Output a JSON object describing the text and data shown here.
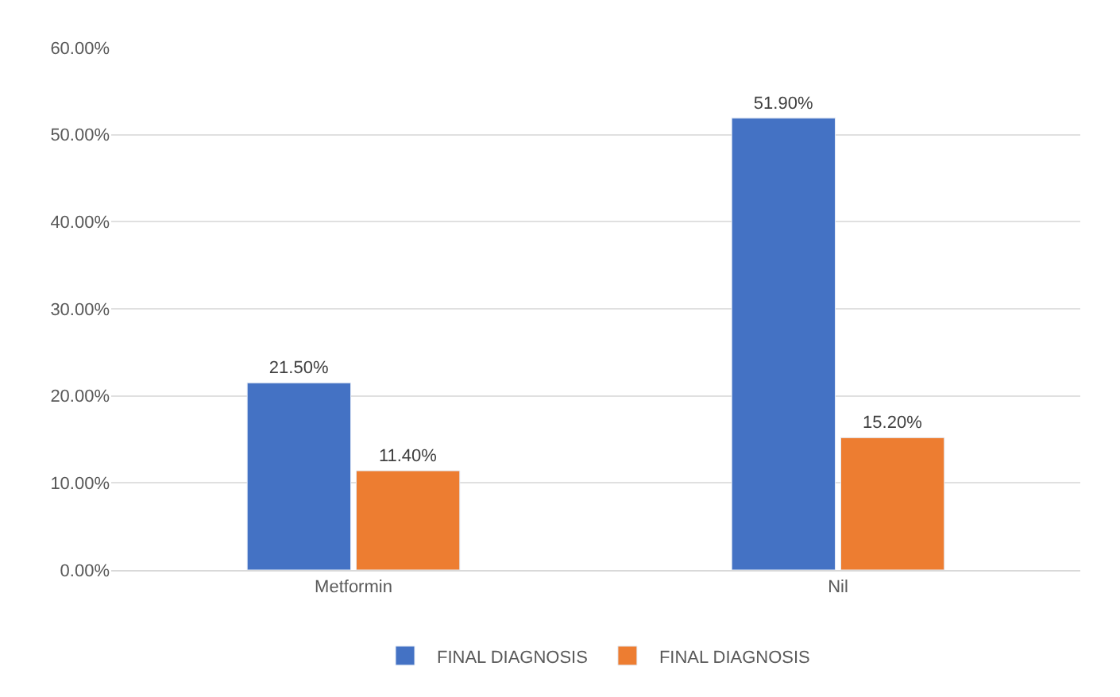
{
  "chart_data": {
    "type": "bar",
    "categories": [
      "Metformin",
      "Nil"
    ],
    "series": [
      {
        "name": "FINAL DIAGNOSIS",
        "color": "#4472c4",
        "values": [
          21.5,
          51.9
        ],
        "value_labels": [
          "21.50%",
          "51.90%"
        ]
      },
      {
        "name": "FINAL DIAGNOSIS",
        "color": "#ed7d31",
        "values": [
          11.4,
          15.2
        ],
        "value_labels": [
          "11.40%",
          "15.20%"
        ]
      }
    ],
    "ylim": [
      0,
      60
    ],
    "yticks": [
      {
        "value": 0,
        "label": "0.00%"
      },
      {
        "value": 10,
        "label": "10.00%"
      },
      {
        "value": 20,
        "label": "20.00%"
      },
      {
        "value": 30,
        "label": "30.00%"
      },
      {
        "value": 40,
        "label": "40.00%"
      },
      {
        "value": 50,
        "label": "50.00%"
      },
      {
        "value": 60,
        "label": "60.00%"
      }
    ],
    "grid": "y",
    "legend": "bottom"
  }
}
